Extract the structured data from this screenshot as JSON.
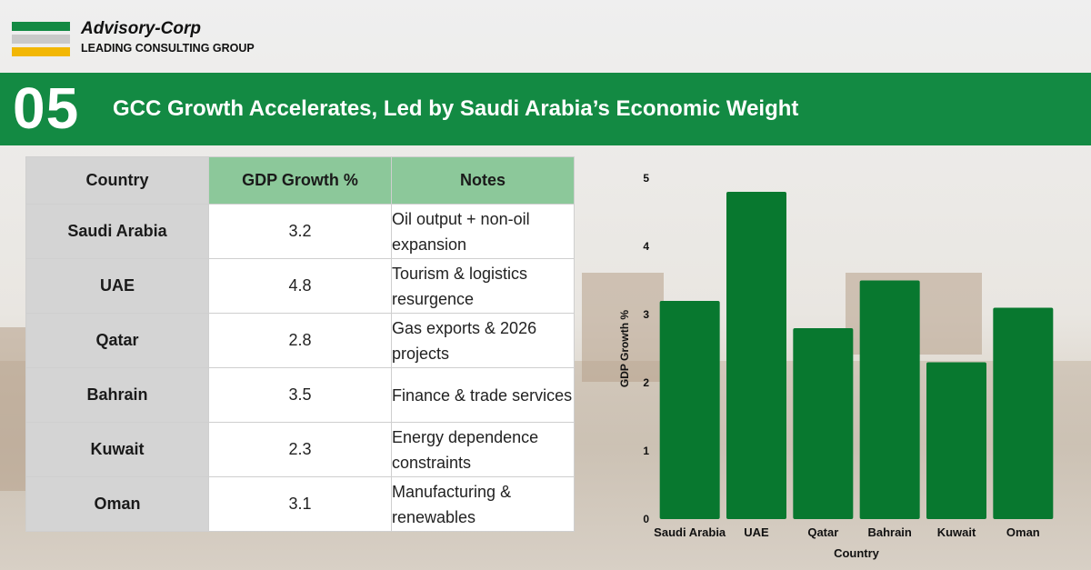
{
  "brand": {
    "name": "Advisory-Corp",
    "tagline": "LEADING CONSULTING GROUP",
    "colors": [
      "#138a43",
      "#c9c9c9",
      "#f2b705"
    ]
  },
  "header": {
    "number": "05",
    "title": "GCC Growth Accelerates, Led by Saudi Arabia’s Economic Weight",
    "band_color": "#138a43"
  },
  "table": {
    "headers": [
      "Country",
      "GDP Growth %",
      "Notes"
    ],
    "rows": [
      {
        "country": "Saudi Arabia",
        "gdp": "3.2",
        "notes": "Oil output + non-oil expansion"
      },
      {
        "country": "UAE",
        "gdp": "4.8",
        "notes": "Tourism & logistics resurgence"
      },
      {
        "country": "Qatar",
        "gdp": "2.8",
        "notes": "Gas exports & 2026 projects"
      },
      {
        "country": "Bahrain",
        "gdp": "3.5",
        "notes": "Finance & trade services"
      },
      {
        "country": "Kuwait",
        "gdp": "2.3",
        "notes": "Energy dependence constraints"
      },
      {
        "country": "Oman",
        "gdp": "3.1",
        "notes": "Manufacturing & renewables"
      }
    ]
  },
  "chart_data": {
    "type": "bar",
    "title": "",
    "categories": [
      "Saudi Arabia",
      "UAE",
      "Qatar",
      "Bahrain",
      "Kuwait",
      "Oman"
    ],
    "values": [
      3.2,
      4.8,
      2.8,
      3.5,
      2.3,
      3.1
    ],
    "xlabel": "Country",
    "ylabel": "GDP Growth %",
    "ylim": [
      0,
      5
    ],
    "yticks": [
      "0",
      "1",
      "2",
      "3",
      "4",
      "5"
    ],
    "grid": false,
    "bar_color": "#08782f"
  }
}
